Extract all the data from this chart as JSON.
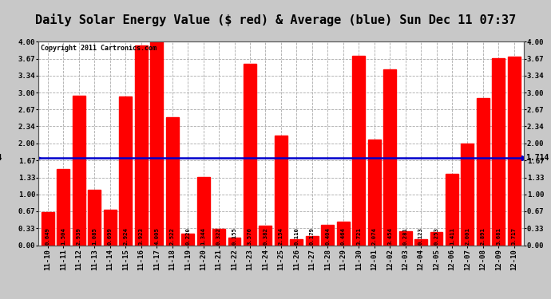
{
  "title": "Daily Solar Energy Value ($ red) & Average (blue) Sun Dec 11 07:37",
  "copyright": "Copyright 2011 Cartronics.com",
  "categories": [
    "11-10",
    "11-11",
    "11-12",
    "11-13",
    "11-14",
    "11-15",
    "11-16",
    "11-17",
    "11-18",
    "11-19",
    "11-20",
    "11-21",
    "11-22",
    "11-23",
    "11-24",
    "11-25",
    "11-26",
    "11-27",
    "11-28",
    "11-29",
    "11-30",
    "12-01",
    "12-02",
    "12-03",
    "12-04",
    "12-05",
    "12-06",
    "12-07",
    "12-08",
    "12-09",
    "12-10"
  ],
  "values": [
    0.649,
    1.504,
    2.939,
    1.085,
    0.699,
    2.924,
    3.923,
    4.005,
    2.522,
    0.22,
    1.344,
    0.322,
    0.155,
    3.576,
    0.382,
    2.154,
    0.11,
    0.179,
    0.404,
    0.464,
    3.721,
    2.074,
    3.454,
    0.281,
    0.123,
    0.253,
    1.411,
    2.001,
    2.891,
    3.681,
    3.717
  ],
  "average": 1.714,
  "bar_color": "#ff0000",
  "avg_color": "#0000cc",
  "background_color": "#c8c8c8",
  "plot_bg_color": "#ffffff",
  "grid_color": "#aaaaaa",
  "ylim": [
    0.0,
    4.0
  ],
  "yticks": [
    0.0,
    0.33,
    0.67,
    1.0,
    1.33,
    1.67,
    2.0,
    2.34,
    2.67,
    3.0,
    3.34,
    3.67,
    4.0
  ],
  "title_fontsize": 11,
  "tick_fontsize": 6.5,
  "label_fontsize": 7,
  "avg_label": "1.714",
  "bar_label_fontsize": 5.2,
  "copyright_fontsize": 6
}
